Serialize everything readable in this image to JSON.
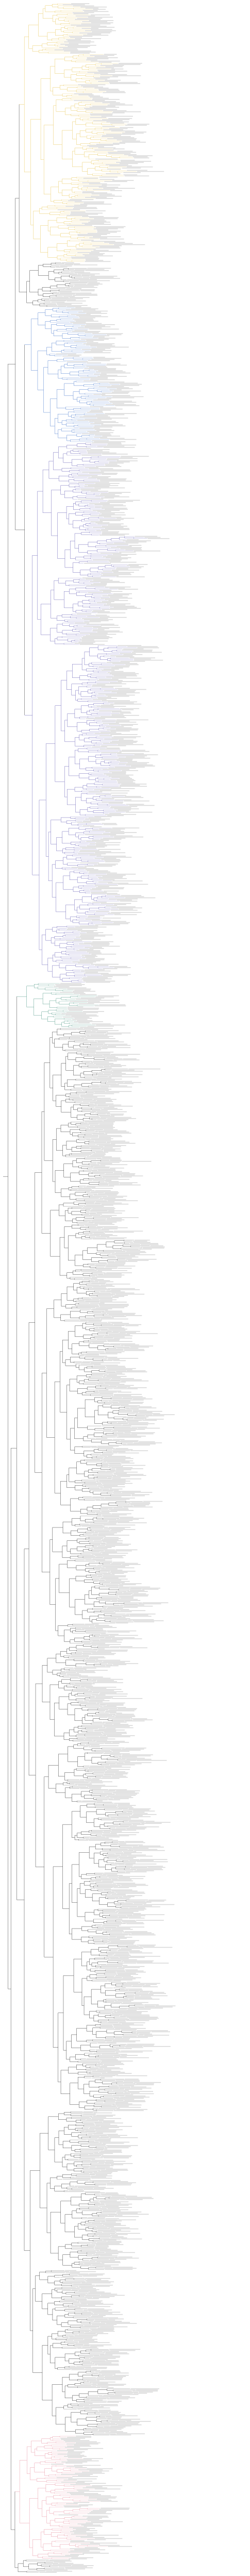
{
  "figure": {
    "type": "phylogenetic-tree",
    "orientation": "rectangular-left-to-right",
    "tip_labels_legible": false,
    "branch_color": "#222222",
    "label_color": "#888888"
  },
  "clades": [
    {
      "id": "clade-yellow",
      "color": "#e8c34a",
      "tip_count": 230
    },
    {
      "id": "clade-black-1",
      "color": "#222222",
      "tip_count": 40
    },
    {
      "id": "clade-blue",
      "color": "#3b6fc9",
      "tip_count": 120
    },
    {
      "id": "clade-violet",
      "color": "#5b55b0",
      "tip_count": 480
    },
    {
      "id": "clade-teal",
      "color": "#3f8f7a",
      "tip_count": 40
    },
    {
      "id": "clade-black-2",
      "color": "#222222",
      "tip_count": 1250
    },
    {
      "id": "clade-pink",
      "color": "#e58a9a",
      "tip_count": 110
    },
    {
      "id": "clade-outgroup",
      "color": "#222222",
      "tip_count": 12
    }
  ]
}
